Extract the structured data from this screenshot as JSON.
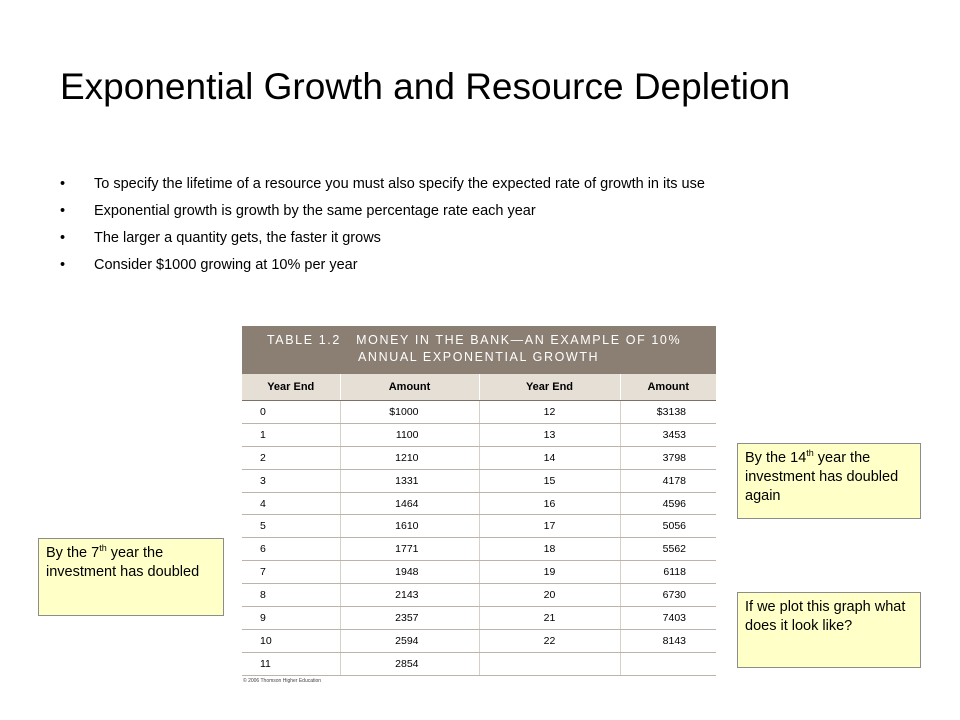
{
  "slide": {
    "title": "Exponential Growth and Resource Depletion",
    "bullets": [
      "To specify the lifetime of a resource you must also specify the expected rate of growth in its use",
      "Exponential growth is growth by the same percentage rate each year",
      "The larger a quantity gets, the faster it grows",
      "Consider $1000 growing at 10% per year"
    ]
  },
  "table": {
    "title_line1": "TABLE 1.2   MONEY IN THE BANK—AN EXAMPLE OF 10%",
    "title_line2": "ANNUAL EXPONENTIAL GROWTH",
    "headers": [
      "Year End",
      "Amount",
      "Year End",
      "Amount"
    ],
    "rows": [
      [
        "0",
        "$1000",
        "12",
        "$3138"
      ],
      [
        "1",
        "1100",
        "13",
        "3453"
      ],
      [
        "2",
        "1210",
        "14",
        "3798"
      ],
      [
        "3",
        "1331",
        "15",
        "4178"
      ],
      [
        "4",
        "1464",
        "16",
        "4596"
      ],
      [
        "5",
        "1610",
        "17",
        "5056"
      ],
      [
        "6",
        "1771",
        "18",
        "5562"
      ],
      [
        "7",
        "1948",
        "19",
        "6118"
      ],
      [
        "8",
        "2143",
        "20",
        "6730"
      ],
      [
        "9",
        "2357",
        "21",
        "7403"
      ],
      [
        "10",
        "2594",
        "22",
        "8143"
      ],
      [
        "11",
        "2854",
        "",
        ""
      ]
    ],
    "copyright": "© 2006 Thomson Higher Education"
  },
  "notes": {
    "seventh": {
      "pre": "By the 7",
      "sup": "th",
      "post": " year the investment has doubled"
    },
    "fourteenth": {
      "pre": "By the 14",
      "sup": "th",
      "post": " year the investment has doubled again"
    },
    "plot": {
      "text": "If we plot this graph what does it look like?"
    }
  },
  "colors": {
    "table_header": "#8b7f73",
    "column_header": "#e5dfd6",
    "note_background": "#ffffc8"
  }
}
